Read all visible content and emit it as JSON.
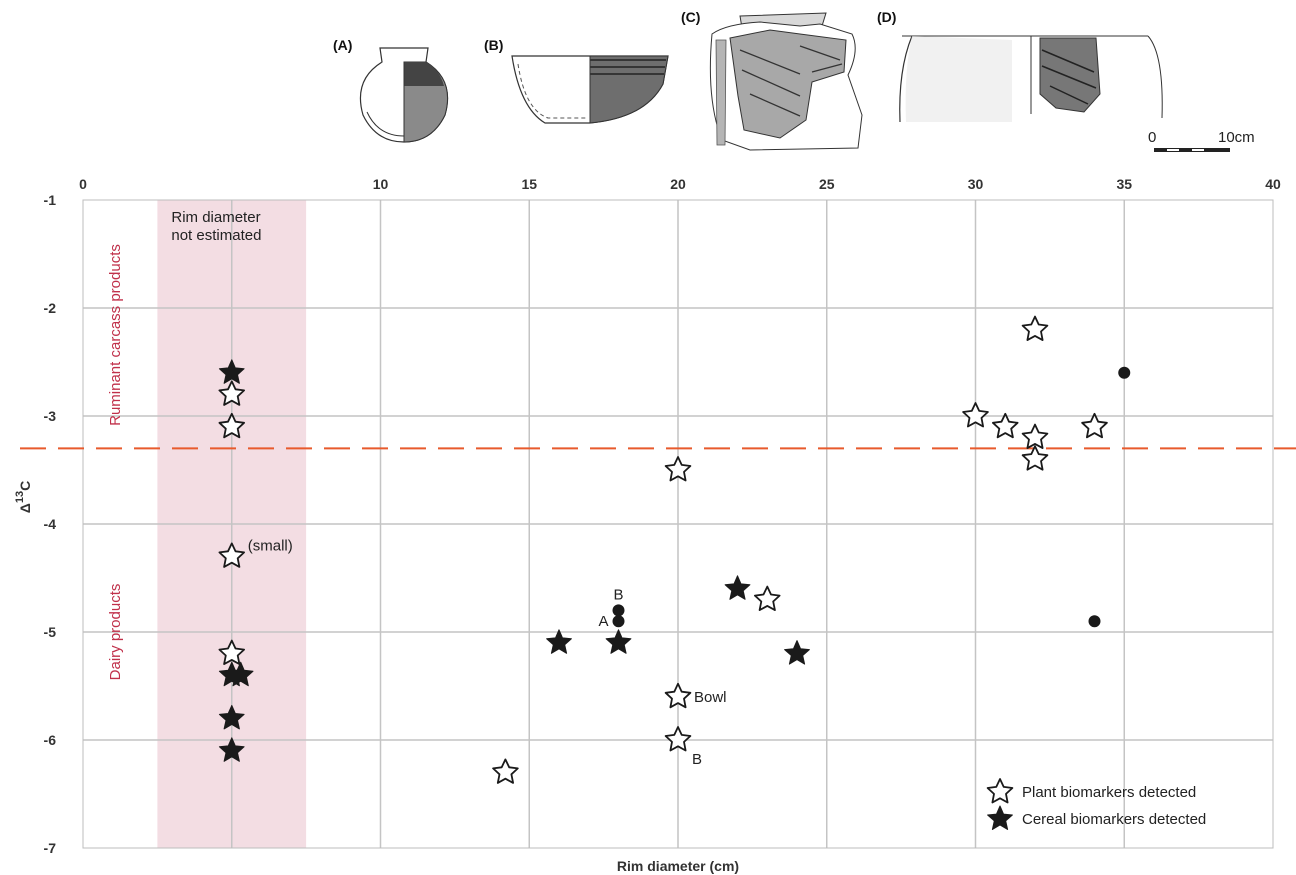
{
  "chart_data": {
    "type": "scatter",
    "xlabel": "Rim diameter (cm)",
    "ylabel_base": "Δ",
    "ylabel_sup": "13",
    "ylabel_tail": "C",
    "xlim": [
      0,
      40
    ],
    "ylim": [
      -7,
      -1
    ],
    "x_ticks": [
      0,
      5,
      10,
      15,
      20,
      25,
      30,
      35,
      40
    ],
    "x_tick_labels": [
      "0",
      "",
      "10",
      "15",
      "20",
      "25",
      "30",
      "35",
      "40"
    ],
    "y_ticks": [
      -1,
      -2,
      -3,
      -4,
      -5,
      -6,
      -7
    ],
    "y_tick_labels": [
      "-1",
      "-2",
      "-3",
      "-4",
      "-5",
      "-6",
      "-7"
    ],
    "grid": true,
    "shaded_region": {
      "x_range": [
        2.5,
        7.5
      ],
      "label_line1": "Rim diameter",
      "label_line2": "not estimated",
      "color": "#f3dde3"
    },
    "threshold": {
      "y": -3.3,
      "color": "#e85a2c"
    },
    "zones": {
      "upper": "Ruminant carcass products",
      "lower": "Dairy products",
      "color": "#c0304a"
    },
    "series": [
      {
        "name": "Plant biomarkers detected",
        "marker": "open-star",
        "points": [
          [
            5,
            -2.8
          ],
          [
            5,
            -3.1
          ],
          [
            5,
            -4.3
          ],
          [
            5,
            -5.2
          ],
          [
            14.2,
            -6.3
          ],
          [
            20,
            -3.5
          ],
          [
            20,
            -5.6
          ],
          [
            20,
            -6.0
          ],
          [
            23,
            -4.7
          ],
          [
            30,
            -3.0
          ],
          [
            31,
            -3.1
          ],
          [
            32,
            -2.2
          ],
          [
            32,
            -3.2
          ],
          [
            32,
            -3.4
          ],
          [
            34,
            -3.1
          ]
        ]
      },
      {
        "name": "Cereal biomarkers detected",
        "marker": "filled-star",
        "points": [
          [
            5,
            -2.6
          ],
          [
            5,
            -5.4
          ],
          [
            5.3,
            -5.4
          ],
          [
            5,
            -5.8
          ],
          [
            5,
            -6.1
          ],
          [
            16,
            -5.1
          ],
          [
            18,
            -5.1
          ],
          [
            22,
            -4.6
          ],
          [
            24,
            -5.2
          ]
        ]
      },
      {
        "name": "",
        "marker": "dot",
        "points": [
          [
            18,
            -4.8
          ],
          [
            18,
            -4.9
          ],
          [
            35,
            -2.6
          ],
          [
            34,
            -4.9
          ]
        ]
      }
    ],
    "annotations": [
      {
        "text": "(small)",
        "x": 5,
        "y": -4.3
      },
      {
        "text": "B",
        "x": 18,
        "y": -4.8
      },
      {
        "text": "A",
        "x": 18,
        "y": -4.9
      },
      {
        "text": "Bowl",
        "x": 20,
        "y": -5.6
      },
      {
        "text": "B",
        "x": 20,
        "y": -6.0
      }
    ],
    "legend": {
      "placement": "bottom-right",
      "entries": [
        "Plant biomarkers detected",
        "Cereal biomarkers detected"
      ]
    },
    "panels": [
      "(A)",
      "(B)",
      "(C)",
      "(D)"
    ],
    "scale_bar": {
      "start": "0",
      "end": "10cm"
    }
  }
}
